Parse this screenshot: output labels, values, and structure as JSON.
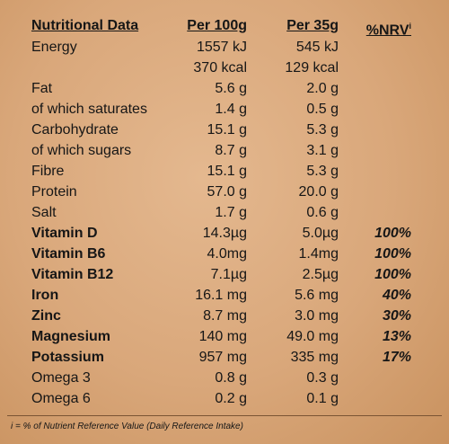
{
  "header": {
    "columns": [
      "Nutritional Data",
      "Per 100g",
      "Per 35g",
      "%NRV"
    ],
    "note_mark": "i"
  },
  "table": {
    "rows": [
      {
        "cells": [
          "Energy",
          "1557 kJ",
          "545 kJ",
          null
        ],
        "bold": false
      },
      {
        "cells": [
          null,
          "370 kcal",
          "129 kcal",
          null
        ],
        "bold": false
      },
      {
        "cells": [
          "Fat",
          "5.6 g",
          "2.0 g",
          null
        ],
        "bold": false
      },
      {
        "cells": [
          "of which saturates",
          "1.4 g",
          "0.5 g",
          null
        ],
        "bold": false
      },
      {
        "cells": [
          "Carbohydrate",
          "15.1 g",
          "5.3 g",
          null
        ],
        "bold": false
      },
      {
        "cells": [
          "of which sugars",
          "8.7 g",
          "3.1 g",
          null
        ],
        "bold": false
      },
      {
        "cells": [
          "Fibre",
          "15.1 g",
          "5.3 g",
          null
        ],
        "bold": false
      },
      {
        "cells": [
          "Protein",
          "57.0 g",
          "20.0 g",
          null
        ],
        "bold": false
      },
      {
        "cells": [
          "Salt",
          "1.7 g",
          "0.6 g",
          null
        ],
        "bold": false
      },
      {
        "cells": [
          "Vitamin D",
          "14.3µg",
          "5.0µg",
          "100%"
        ],
        "bold": true
      },
      {
        "cells": [
          "Vitamin B6",
          "4.0mg",
          "1.4mg",
          "100%"
        ],
        "bold": true
      },
      {
        "cells": [
          "Vitamin B12",
          "7.1µg",
          "2.5µg",
          "100%"
        ],
        "bold": true
      },
      {
        "cells": [
          "Iron",
          "16.1 mg",
          "5.6 mg",
          "40%"
        ],
        "bold": true
      },
      {
        "cells": [
          "Zinc",
          "8.7 mg",
          "3.0 mg",
          "30%"
        ],
        "bold": true
      },
      {
        "cells": [
          "Magnesium",
          "140 mg",
          "49.0 mg",
          "13%"
        ],
        "bold": true
      },
      {
        "cells": [
          "Potassium",
          "957 mg",
          "335 mg",
          "17%"
        ],
        "bold": true
      },
      {
        "cells": [
          "Omega 3",
          "0.8 g",
          "0.3 g",
          null
        ],
        "bold": false
      },
      {
        "cells": [
          "Omega 6",
          "0.2 g",
          "0.1 g",
          null
        ],
        "bold": false
      }
    ]
  },
  "footnote": "i = % of Nutrient Reference Value (Daily Reference Intake)"
}
